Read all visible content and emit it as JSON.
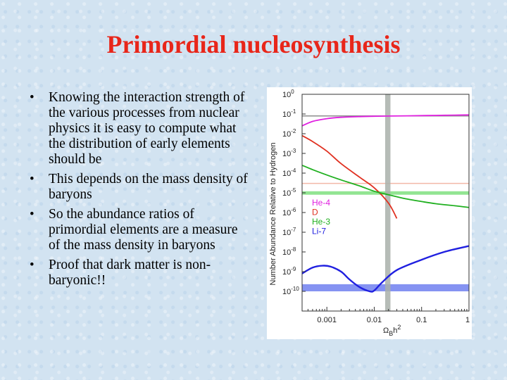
{
  "slide": {
    "title": "Primordial nucleosynthesis",
    "bullets": [
      "Knowing the interaction strength of the various processes from nuclear physics it is easy to compute what the distribution of early elements should be",
      "This depends on the mass density of baryons",
      "So the abundance ratios of primordial elements are a measure of the mass density in baryons",
      "Proof that dark matter is non-baryonic!!"
    ]
  },
  "chart_data": {
    "type": "line",
    "xscale": "log",
    "yscale": "log",
    "xlim": [
      0.0003,
      1
    ],
    "ylim": [
      1e-11,
      1
    ],
    "x_ticks": [
      {
        "value": 0.001,
        "label": "0.001"
      },
      {
        "value": 0.01,
        "label": "0.01"
      },
      {
        "value": 0.1,
        "label": "0.1"
      },
      {
        "value": 1,
        "label": "1"
      }
    ],
    "y_ticks": [
      {
        "value": 1,
        "base": "10",
        "exp": "0"
      },
      {
        "value": 0.1,
        "base": "10",
        "exp": "-1"
      },
      {
        "value": 0.01,
        "base": "10",
        "exp": "-2"
      },
      {
        "value": 0.001,
        "base": "10",
        "exp": "-3"
      },
      {
        "value": 0.0001,
        "base": "10",
        "exp": "-4"
      },
      {
        "value": 1e-05,
        "base": "10",
        "exp": "-5"
      },
      {
        "value": 1e-06,
        "base": "10",
        "exp": "-6"
      },
      {
        "value": 1e-07,
        "base": "10",
        "exp": "-7"
      },
      {
        "value": 1e-08,
        "base": "10",
        "exp": "-8"
      },
      {
        "value": 1e-09,
        "base": "10",
        "exp": "-9"
      },
      {
        "value": 1e-10,
        "base": "10",
        "exp": "-10"
      }
    ],
    "xlabel": {
      "main": "Ω",
      "sub": "B",
      "sup": "h",
      "sup2": "2"
    },
    "ylabel": "Number Abundance Relative to Hydrogen",
    "legend_position": "center-left",
    "series": [
      {
        "name": "He-4",
        "color": "#e020e0",
        "x": [
          0.0003,
          0.0005,
          0.001,
          0.002,
          0.005,
          0.01,
          0.02,
          0.05,
          0.1,
          0.2,
          0.5,
          1
        ],
        "y": [
          0.025,
          0.042,
          0.058,
          0.068,
          0.074,
          0.077,
          0.079,
          0.081,
          0.083,
          0.085,
          0.088,
          0.09
        ]
      },
      {
        "name": "D",
        "color": "#e03020",
        "x": [
          0.0003,
          0.0005,
          0.001,
          0.002,
          0.005,
          0.01,
          0.02,
          0.03
        ],
        "y": [
          0.008,
          0.004,
          0.0013,
          0.0003,
          6e-05,
          1.8e-05,
          3e-06,
          5e-07
        ]
      },
      {
        "name": "He-3",
        "color": "#20b020",
        "x": [
          0.0003,
          0.0005,
          0.001,
          0.002,
          0.005,
          0.01,
          0.02,
          0.05,
          0.1,
          0.2,
          0.5,
          1
        ],
        "y": [
          0.00025,
          0.00015,
          8e-05,
          4.5e-05,
          2.2e-05,
          1.2e-05,
          8e-06,
          4.8e-06,
          3.6e-06,
          2.8e-06,
          2.2e-06,
          1.8e-06
        ]
      },
      {
        "name": "Li-7",
        "color": "#2020e0",
        "x": [
          0.0003,
          0.0005,
          0.0008,
          0.0012,
          0.002,
          0.003,
          0.005,
          0.008,
          0.01,
          0.015,
          0.03,
          0.1,
          0.3,
          1
        ],
        "y": [
          8e-10,
          1.6e-09,
          2e-09,
          1.8e-09,
          1e-09,
          4e-10,
          1.6e-10,
          1e-10,
          1.1e-10,
          3e-10,
          1.2e-09,
          4e-09,
          1e-08,
          2e-08
        ]
      }
    ],
    "observed_bands": [
      {
        "series": "He-4",
        "color": "#8c8c8c",
        "y": 0.08
      },
      {
        "series": "D",
        "color": "#f2b8a8",
        "y": 3e-05
      },
      {
        "series": "He-3",
        "color": "#7fe07f",
        "y": [
          8e-06,
          1.2e-05
        ]
      },
      {
        "series": "Li-7",
        "color": "#7080f0",
        "y": [
          1e-10,
          2.3e-10
        ]
      }
    ],
    "vertical_band": {
      "color": "#a9b0aa",
      "x": [
        0.017,
        0.022
      ]
    }
  }
}
